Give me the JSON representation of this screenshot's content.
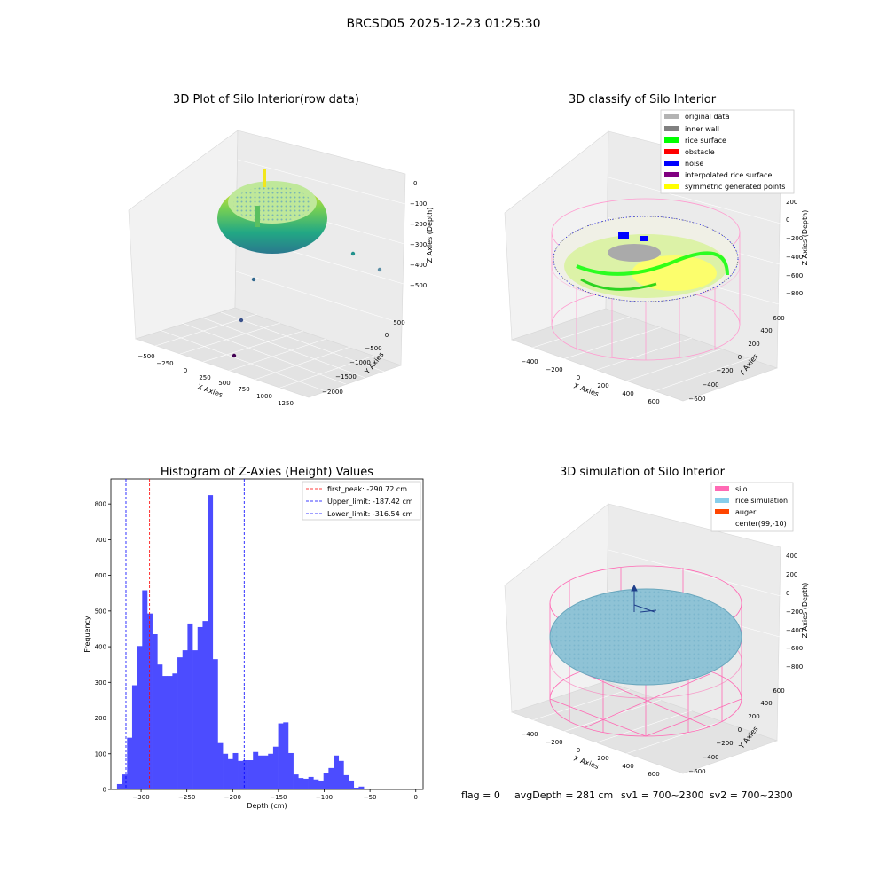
{
  "suptitle": "BRCSD05 2025-12-23 01:25:30",
  "footer": {
    "flag": "flag = 0",
    "avg": "avgDepth = 281 cm",
    "sv1": "sv1 = 700~2300",
    "sv2": "sv2 = 700~2300"
  },
  "chart_data": [
    {
      "type": "scatter",
      "title": "3D Plot of Silo Interior(row data)",
      "xlabel": "X Axies",
      "ylabel": "Y Axies",
      "zlabel": "Z Axies (Depth)",
      "x_ticks": [
        "−500",
        "−250",
        "0",
        "250",
        "500",
        "750",
        "1000",
        "1250"
      ],
      "y_ticks": [
        "500",
        "0",
        "−500",
        "−1000",
        "−1500",
        "−2000"
      ],
      "z_ticks": [
        "0",
        "−100",
        "−200",
        "−300",
        "−400",
        "−500"
      ],
      "colormap": "viridis",
      "outlier_points": [
        {
          "x": 500,
          "y": -1900,
          "z": -560,
          "color": "#440154"
        },
        {
          "x": 300,
          "y": -1200,
          "z": -480,
          "color": "#3b528b"
        },
        {
          "x": 200,
          "y": -700,
          "z": -420,
          "color": "#31688e"
        },
        {
          "x": 1100,
          "y": 400,
          "z": -350,
          "color": "#21918c"
        },
        {
          "x": 1250,
          "y": 300,
          "z": -380,
          "color": "#5b8ea5"
        }
      ]
    },
    {
      "type": "scatter",
      "title": "3D classify of Silo Interior",
      "xlabel": "X Axies",
      "ylabel": "Y Axies",
      "zlabel": "Z Axies (Depth)",
      "x_ticks": [
        "−400",
        "−200",
        "0",
        "200",
        "400",
        "600"
      ],
      "y_ticks": [
        "600",
        "400",
        "200",
        "0",
        "−200",
        "−400",
        "−600"
      ],
      "z_ticks": [
        "200",
        "0",
        "−200",
        "−400",
        "−600",
        "−800"
      ],
      "legend": [
        {
          "label": "original data",
          "color": "#b3b3b3"
        },
        {
          "label": "inner wall",
          "color": "#808080"
        },
        {
          "label": "rice surface",
          "color": "#00ff00"
        },
        {
          "label": "obstacle",
          "color": "#ff0000"
        },
        {
          "label": "noise",
          "color": "#0000ff"
        },
        {
          "label": "interpolated rice surface",
          "color": "#800080"
        },
        {
          "label": "symmetric generated points",
          "color": "#ffff00"
        }
      ]
    },
    {
      "type": "bar",
      "title": "Histogram of Z-Axies (Height) Values",
      "xlabel": "Depth (cm)",
      "ylabel": "Frequency",
      "xlim": [
        -333,
        8
      ],
      "ylim": [
        0,
        870
      ],
      "x_ticks": [
        -300,
        -250,
        -200,
        -150,
        -100,
        -50,
        0
      ],
      "x_tick_labels": [
        "−300",
        "−250",
        "−200",
        "−150",
        "−100",
        "−50",
        "0"
      ],
      "y_ticks": [
        0,
        100,
        200,
        300,
        400,
        500,
        600,
        700,
        800
      ],
      "bin_start": -326.3,
      "bin_width": 5.5,
      "values": [
        15,
        42,
        145,
        292,
        402,
        558,
        493,
        435,
        350,
        318,
        318,
        325,
        370,
        390,
        465,
        390,
        455,
        472,
        825,
        365,
        130,
        100,
        85,
        102,
        80,
        82,
        82,
        105,
        95,
        95,
        100,
        120,
        185,
        188,
        102,
        42,
        32,
        30,
        35,
        28,
        25,
        45,
        60,
        95,
        80,
        40,
        25,
        5,
        8
      ],
      "bar_color": "#4c4cff",
      "lines": [
        {
          "label": "first_peak: -290.72 cm",
          "x": -290.72,
          "color": "#ff0000"
        },
        {
          "label": "Upper_limit: -187.42 cm",
          "x": -187.42,
          "color": "#0000ff"
        },
        {
          "label": "Lower_limit: -316.54 cm",
          "x": -316.54,
          "color": "#0000ff"
        }
      ]
    },
    {
      "type": "scatter",
      "title": "3D simulation of Silo Interior",
      "xlabel": "X Axies",
      "ylabel": "Y Axies",
      "zlabel": "Z Axies (Depth)",
      "x_ticks": [
        "−400",
        "−200",
        "0",
        "200",
        "400",
        "600"
      ],
      "y_ticks": [
        "600",
        "400",
        "200",
        "0",
        "−200",
        "−400",
        "−600"
      ],
      "z_ticks": [
        "400",
        "200",
        "0",
        "−200",
        "−400",
        "−600",
        "−800"
      ],
      "legend": [
        {
          "label": "silo",
          "color": "#ff69b4"
        },
        {
          "label": "rice simulation",
          "color": "#87ceeb"
        },
        {
          "label": "auger",
          "color": "#ff4500"
        },
        {
          "label": "center(99,-10)",
          "color": ""
        }
      ]
    }
  ]
}
